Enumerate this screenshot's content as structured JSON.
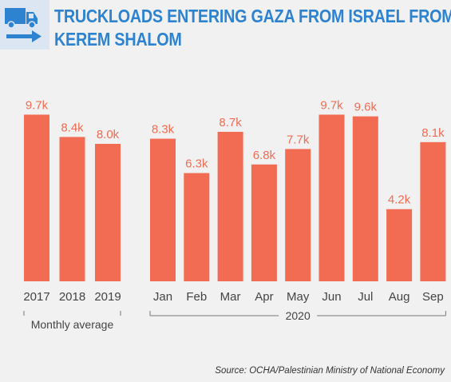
{
  "header": {
    "title_line1": "TRUCKLOADS ENTERING GAZA FROM ISRAEL FROM",
    "title_line2": "KEREM SHALOM",
    "icon": "truck-arrow-icon",
    "title_color": "#2e83d0",
    "icon_bg_color": "#dce6f3"
  },
  "chart_data": {
    "type": "bar",
    "bar_color": "#f26c53",
    "groups": [
      {
        "label": "Monthly average",
        "categories": [
          "2017",
          "2018",
          "2019"
        ],
        "values": [
          9.7,
          8.4,
          8.0
        ],
        "value_labels": [
          "9.7k",
          "8.4k",
          "8.0k"
        ]
      },
      {
        "label": "2020",
        "categories": [
          "Jan",
          "Feb",
          "Mar",
          "Apr",
          "May",
          "Jun",
          "Jul",
          "Aug",
          "Sep"
        ],
        "values": [
          8.3,
          6.3,
          8.7,
          6.8,
          7.7,
          9.7,
          9.6,
          4.2,
          8.1
        ],
        "value_labels": [
          "8.3k",
          "6.3k",
          "8.7k",
          "6.8k",
          "7.7k",
          "9.7k",
          "9.6k",
          "4.2k",
          "8.1k"
        ]
      }
    ],
    "ylim": [
      0,
      10
    ],
    "grid": false,
    "legend": "none"
  },
  "source": "Source: OCHA/Palestinian Ministry of National Economy"
}
